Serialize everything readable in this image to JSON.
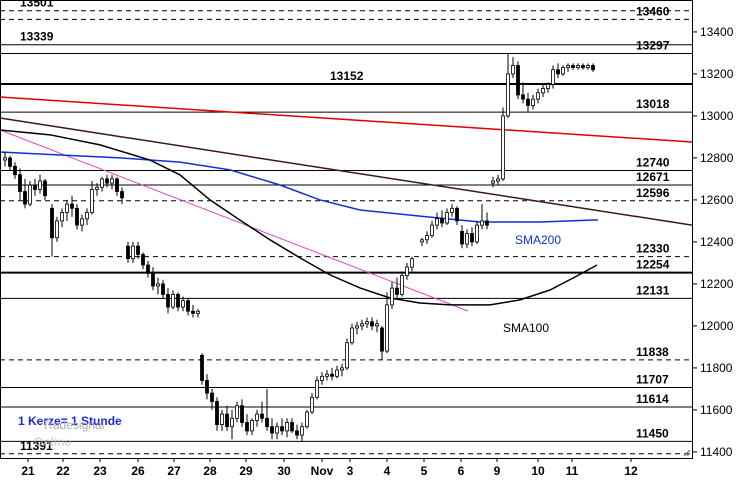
{
  "chart_data": {
    "type": "candlestick",
    "note_text": "1 Kerze= 1 Stunde",
    "watermark": [
      "Tradesignal",
      "Online"
    ],
    "ylim": [
      11371,
      13552
    ],
    "yticks": [
      11400,
      11600,
      11800,
      12000,
      12200,
      12400,
      12600,
      12800,
      13000,
      13200,
      13400
    ],
    "xlim": [
      0,
      138.4
    ],
    "xticks": [
      {
        "value": 5.6,
        "label": "21"
      },
      {
        "value": 12.6,
        "label": "22"
      },
      {
        "value": 20,
        "label": "23"
      },
      {
        "value": 27.6,
        "label": "26"
      },
      {
        "value": 34.8,
        "label": "27"
      },
      {
        "value": 42,
        "label": "28"
      },
      {
        "value": 49.2,
        "label": "29"
      },
      {
        "value": 56.8,
        "label": "30"
      },
      {
        "value": 64.4,
        "label": "Nov"
      },
      {
        "value": 70,
        "label": "3"
      },
      {
        "value": 77.4,
        "label": "4"
      },
      {
        "value": 84.8,
        "label": "5"
      },
      {
        "value": 92.2,
        "label": "6"
      },
      {
        "value": 99.4,
        "label": "9"
      },
      {
        "value": 107.6,
        "label": "10"
      },
      {
        "value": 114.4,
        "label": "11"
      },
      {
        "value": 126.2,
        "label": "12"
      }
    ],
    "levels": [
      {
        "value": 13501,
        "style": "dashed"
      },
      {
        "value": 13460,
        "style": "dashed"
      },
      {
        "value": 13339,
        "style": "solid"
      },
      {
        "value": 13297,
        "style": "solid"
      },
      {
        "value": 13152,
        "style": "solid"
      },
      {
        "value": 13018,
        "style": "solid"
      },
      {
        "value": 12740,
        "style": "solid"
      },
      {
        "value": 12671,
        "style": "solid"
      },
      {
        "value": 12596,
        "style": "dashed"
      },
      {
        "value": 12330,
        "style": "dashed"
      },
      {
        "value": 12254,
        "style": "solid"
      },
      {
        "value": 12131,
        "style": "solid"
      },
      {
        "value": 11838,
        "style": "dashed"
      },
      {
        "value": 11707,
        "style": "solid"
      },
      {
        "value": 11614,
        "style": "solid"
      },
      {
        "value": 11450,
        "style": "solid"
      },
      {
        "value": 11391,
        "style": "dashed"
      }
    ],
    "lines": [
      {
        "color": "#e00000",
        "x": [
          0,
          138.4
        ],
        "values": [
          13090,
          12876
        ]
      },
      {
        "color": "#3a1a10",
        "x": [
          0,
          138.4
        ],
        "values": [
          12990,
          12480
        ]
      },
      {
        "color": "#e040c0",
        "x": [
          0,
          93.6
        ],
        "values": [
          12933,
          12071
        ]
      },
      {
        "name": "SMA200",
        "color": "#1030d0",
        "x": [
          0,
          12,
          24,
          36,
          46,
          56,
          64,
          72,
          84,
          96,
          108,
          119.6
        ],
        "values": [
          12828,
          12814,
          12800,
          12780,
          12743,
          12671,
          12600,
          12552,
          12523,
          12495,
          12495,
          12505
        ]
      },
      {
        "name": "SMA100",
        "color": "#000000",
        "x": [
          0,
          10,
          20,
          30,
          36,
          42,
          48,
          54,
          60,
          66,
          72,
          78,
          84,
          90,
          98,
          104,
          110,
          115,
          119.4
        ],
        "values": [
          12933,
          12910,
          12862,
          12790,
          12719,
          12600,
          12504,
          12410,
          12324,
          12243,
          12181,
          12133,
          12109,
          12100,
          12100,
          12124,
          12171,
          12233,
          12290
        ]
      }
    ],
    "x": [
      1,
      2,
      3,
      4,
      5,
      6,
      7,
      8,
      9,
      10.4,
      11.4,
      12.4,
      13.4,
      14.4,
      15.4,
      16.4,
      17.4,
      18.4,
      19.4,
      20.4,
      21.4,
      22.4,
      23.4,
      24.4,
      25.6,
      26.6,
      27.6,
      28.6,
      29.6,
      30.6,
      31.6,
      32.6,
      33.6,
      34.6,
      35.6,
      36.6,
      37.6,
      38.6,
      39.6,
      40.4,
      41.4,
      42.4,
      43.4,
      44.4,
      45.4,
      46.4,
      47.4,
      48.4,
      49.4,
      50.4,
      51.4,
      52.4,
      53.4,
      54.4,
      55.4,
      56.4,
      57.4,
      58.4,
      59.4,
      60.4,
      61.4,
      62.4,
      63.4,
      64.4,
      65.4,
      66.4,
      67.4,
      68.4,
      69.4,
      70.4,
      71.4,
      72.4,
      73.4,
      74.4,
      75.4,
      76.4,
      77.4,
      78.4,
      79.4,
      80.4,
      81.4,
      82.4,
      84.4,
      85.4,
      86.4,
      87.4,
      88.4,
      89.4,
      90.4,
      91.4,
      92.4,
      93.4,
      94.4,
      95.4,
      96.4,
      97.4,
      98.6,
      99.6,
      100.6,
      101.6,
      102.6,
      103.6,
      104.6,
      105.6,
      106.6,
      107.6,
      108.6,
      109.6,
      110.6,
      111.6,
      112.6,
      113.6,
      114.6,
      115.6,
      116.6,
      117.6,
      118.6
    ],
    "open": [
      12790,
      12800,
      12760,
      12720,
      12640,
      12580,
      12670,
      12650,
      12690,
      12560,
      12420,
      12500,
      12540,
      12580,
      12560,
      12480,
      12510,
      12540,
      12650,
      12660,
      12700,
      12680,
      12700,
      12640,
      12380,
      12320,
      12380,
      12340,
      12290,
      12250,
      12190,
      12200,
      12150,
      12090,
      12150,
      12090,
      12120,
      12070,
      12060,
      11860,
      11740,
      11680,
      11640,
      11530,
      11580,
      11520,
      11560,
      11620,
      11540,
      11500,
      11550,
      11580,
      11560,
      11520,
      11490,
      11520,
      11500,
      11540,
      11500,
      11480,
      11520,
      11590,
      11660,
      11740,
      11760,
      11770,
      11760,
      11790,
      11800,
      11920,
      11990,
      12000,
      12010,
      12020,
      12000,
      11990,
      11880,
      12100,
      12180,
      12150,
      12240,
      12280,
      12400,
      12410,
      12430,
      12480,
      12510,
      12490,
      12540,
      12560,
      12450,
      12390,
      12440,
      12400,
      12480,
      12500,
      12680,
      12690,
      12700,
      13000,
      13200,
      13240,
      13100,
      13080,
      13050,
      13080,
      13110,
      13130,
      13150,
      13220,
      13200,
      13230,
      13240,
      13230,
      13240,
      13230,
      13240
    ],
    "high": [
      12830,
      12810,
      12780,
      12750,
      12700,
      12690,
      12700,
      12720,
      12700,
      12580,
      12520,
      12560,
      12600,
      12620,
      12580,
      12530,
      12560,
      12690,
      12680,
      12710,
      12720,
      12720,
      12710,
      12660,
      12400,
      12400,
      12400,
      12350,
      12310,
      12280,
      12230,
      12220,
      12180,
      12170,
      12160,
      12140,
      12130,
      12100,
      12080,
      11870,
      11770,
      11700,
      11660,
      11600,
      11620,
      11600,
      11640,
      11650,
      11580,
      11560,
      11600,
      11640,
      11700,
      11560,
      11540,
      11560,
      11560,
      11560,
      11530,
      11540,
      11600,
      11680,
      11760,
      11780,
      11790,
      11800,
      11810,
      11820,
      11940,
      12010,
      12020,
      12030,
      12040,
      12040,
      12030,
      12000,
      12160,
      12210,
      12230,
      12260,
      12300,
      12330,
      12420,
      12450,
      12500,
      12540,
      12550,
      12560,
      12580,
      12570,
      12480,
      12460,
      12470,
      12500,
      12580,
      12540,
      12710,
      12720,
      13040,
      13300,
      13280,
      13260,
      13160,
      13110,
      13100,
      13130,
      13150,
      13160,
      13240,
      13250,
      13240,
      13250,
      13250,
      13250,
      13250,
      13250,
      13250
    ],
    "low": [
      12760,
      12740,
      12700,
      12600,
      12560,
      12570,
      12620,
      12630,
      12600,
      12330,
      12400,
      12470,
      12500,
      12520,
      12460,
      12450,
      12480,
      12530,
      12620,
      12640,
      12660,
      12650,
      12620,
      12580,
      12300,
      12300,
      12320,
      12270,
      12230,
      12170,
      12150,
      12130,
      12060,
      12080,
      12070,
      12070,
      12050,
      12040,
      12040,
      11720,
      11650,
      11600,
      11500,
      11500,
      11500,
      11460,
      11540,
      11520,
      11480,
      11480,
      11520,
      11540,
      11500,
      11460,
      11460,
      11480,
      11470,
      11490,
      11460,
      11450,
      11510,
      11580,
      11650,
      11720,
      11740,
      11740,
      11750,
      11760,
      11790,
      11910,
      11960,
      11980,
      11990,
      11980,
      11970,
      11840,
      11870,
      12080,
      12130,
      12140,
      12220,
      12260,
      12380,
      12390,
      12420,
      12460,
      12470,
      12480,
      12520,
      12480,
      12370,
      12370,
      12380,
      12390,
      12460,
      12460,
      12660,
      12670,
      12690,
      12990,
      13180,
      13080,
      13060,
      13020,
      13030,
      13060,
      13090,
      13110,
      13130,
      13180,
      13190,
      13210,
      13220,
      13220,
      13220,
      13220,
      13210
    ],
    "close": [
      12800,
      12760,
      12720,
      12640,
      12580,
      12670,
      12650,
      12690,
      12620,
      12420,
      12500,
      12540,
      12580,
      12560,
      12480,
      12510,
      12540,
      12650,
      12660,
      12700,
      12680,
      12700,
      12640,
      12610,
      12320,
      12380,
      12340,
      12290,
      12250,
      12190,
      12200,
      12150,
      12090,
      12150,
      12090,
      12120,
      12070,
      12060,
      12070,
      11740,
      11680,
      11640,
      11530,
      11580,
      11520,
      11560,
      11620,
      11540,
      11500,
      11550,
      11580,
      11560,
      11520,
      11490,
      11520,
      11500,
      11540,
      11500,
      11480,
      11520,
      11590,
      11660,
      11740,
      11760,
      11770,
      11760,
      11790,
      11800,
      11920,
      11990,
      12000,
      12010,
      12020,
      12000,
      12010,
      11880,
      12100,
      12180,
      12150,
      12240,
      12280,
      12320,
      12410,
      12430,
      12480,
      12510,
      12490,
      12540,
      12560,
      12500,
      12390,
      12440,
      12400,
      12480,
      12500,
      12480,
      12690,
      12700,
      13000,
      13200,
      13240,
      13100,
      13080,
      13050,
      13080,
      13110,
      13130,
      13150,
      13220,
      13200,
      13230,
      13240,
      13230,
      13240,
      13230,
      13240,
      13220
    ]
  }
}
